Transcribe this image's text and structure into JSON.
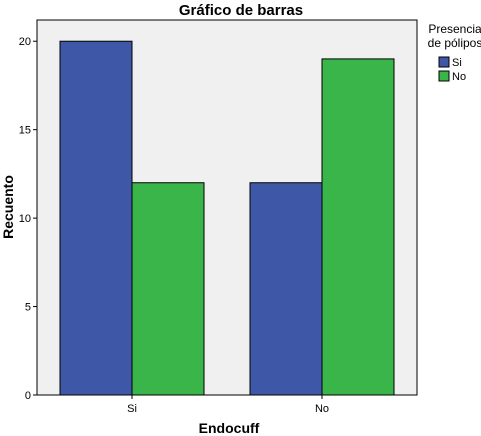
{
  "chart_data": {
    "type": "bar",
    "title": "Gráfico de barras",
    "xlabel": "Endocuff",
    "ylabel": "Recuento",
    "categories": [
      "Si",
      "No"
    ],
    "series": [
      {
        "name": "Si",
        "values": [
          20,
          12
        ],
        "color": "#3f57a7"
      },
      {
        "name": "No",
        "values": [
          12,
          19
        ],
        "color": "#3ab54a"
      }
    ],
    "ylim": [
      0,
      21.2
    ],
    "yticks": [
      0,
      5,
      10,
      15,
      20
    ],
    "grid": false,
    "legend": {
      "title_lines": [
        "Presencia",
        "de pólipos"
      ],
      "placement": "right"
    },
    "plot_background": "#f0f0f0"
  }
}
